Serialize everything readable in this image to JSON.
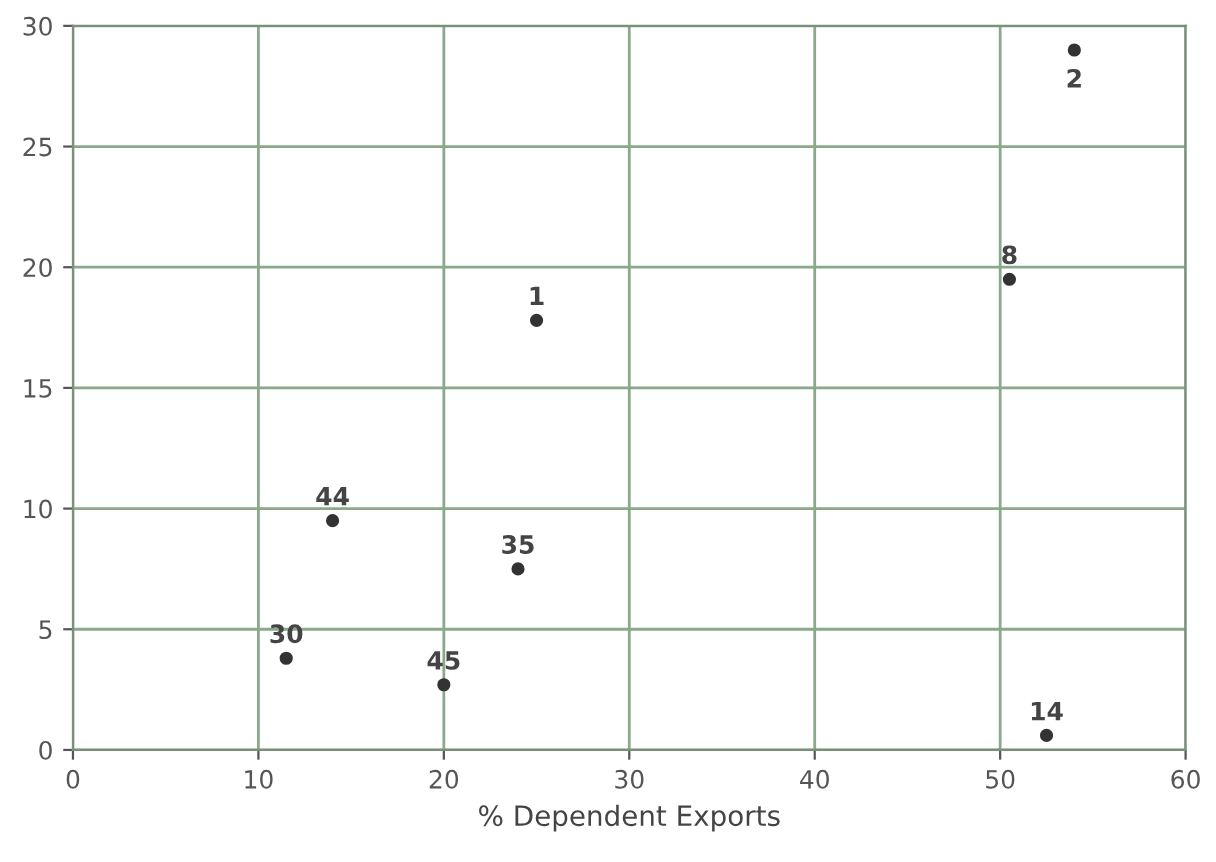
{
  "chart_data": {
    "type": "scatter",
    "xlabel": "% Dependent Exports",
    "x": [
      54,
      50.5,
      25,
      14,
      24,
      11.5,
      20,
      52.5
    ],
    "values": [
      29,
      19.5,
      17.8,
      9.5,
      7.5,
      3.8,
      2.7,
      0.6
    ],
    "color": "#333333",
    "annotations": [
      {
        "text": "2",
        "x": 54,
        "y": 29
      },
      {
        "text": "8",
        "x": 50.5,
        "y": 19.5
      },
      {
        "text": "1",
        "x": 25,
        "y": 17.8
      },
      {
        "text": "44",
        "x": 14,
        "y": 9.5
      },
      {
        "text": "35",
        "x": 24,
        "y": 7.5
      },
      {
        "text": "30",
        "x": 11.5,
        "y": 3.8
      },
      {
        "text": "45",
        "x": 20,
        "y": 2.7
      },
      {
        "text": "14",
        "x": 52.5,
        "y": 0.6
      }
    ],
    "xlim": [
      0,
      60
    ],
    "xticks": [
      0,
      10,
      20,
      30,
      40,
      50,
      60
    ],
    "ylim": [
      0,
      30
    ],
    "yticks": [
      0,
      5,
      10,
      15,
      20,
      25,
      30
    ],
    "grid": true,
    "marker": "circle"
  }
}
